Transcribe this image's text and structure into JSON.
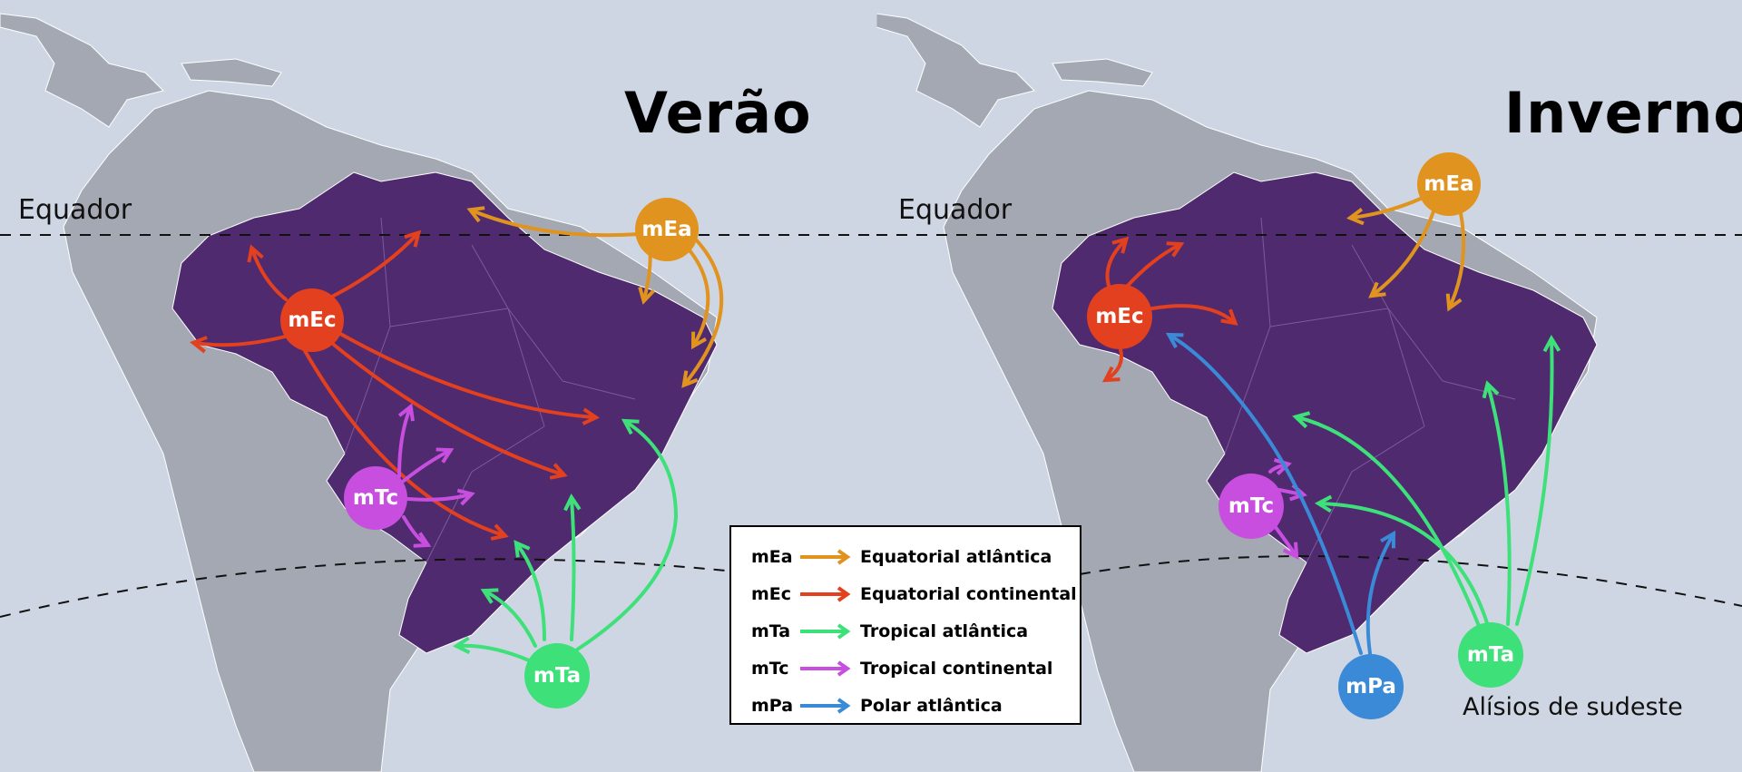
{
  "maps": [
    {
      "title": "Verão",
      "equator_label": "Equador",
      "air_masses": [
        {
          "code": "mEa",
          "color": "#e0941f"
        },
        {
          "code": "mEc",
          "color": "#e2401e"
        },
        {
          "code": "mTc",
          "color": "#c84ee0"
        },
        {
          "code": "mTa",
          "color": "#3ee07a"
        }
      ]
    },
    {
      "title": "Inverno",
      "equator_label": "Equador",
      "tradewinds_label": "Alísios de sudeste",
      "air_masses": [
        {
          "code": "mEa",
          "color": "#e0941f"
        },
        {
          "code": "mEc",
          "color": "#e2401e"
        },
        {
          "code": "mTc",
          "color": "#c84ee0"
        },
        {
          "code": "mPa",
          "color": "#3a8ad8"
        },
        {
          "code": "mTa",
          "color": "#3ee07a"
        }
      ]
    }
  ],
  "legend": [
    {
      "code": "mEa",
      "label": "Equatorial atlântica",
      "color": "#e0941f"
    },
    {
      "code": "mEc",
      "label": "Equatorial continental",
      "color": "#e2401e"
    },
    {
      "code": "mTa",
      "label": "Tropical atlântica",
      "color": "#3ee07a"
    },
    {
      "code": "mTc",
      "label": "Tropical continental",
      "color": "#c84ee0"
    },
    {
      "code": "mPa",
      "label": "Polar atlântica",
      "color": "#3a8ad8"
    }
  ],
  "colors": {
    "ocean": "#cfd6e3",
    "land": "#a3a8b2",
    "brazil": "#4f2a6e"
  }
}
